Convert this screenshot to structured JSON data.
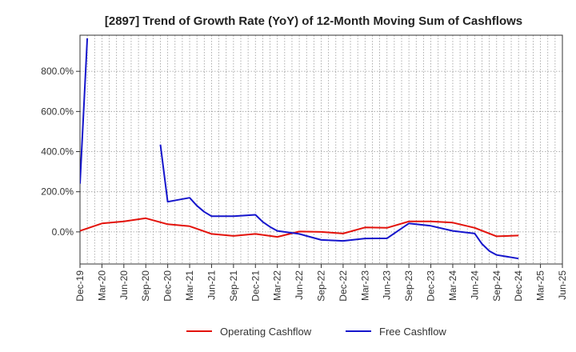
{
  "chart_data": {
    "type": "line",
    "title": "[2897]  Trend of Growth Rate (YoY) of 12-Month Moving Sum of Cashflows",
    "xlabel": "",
    "ylabel": "",
    "x_tick_labels": [
      "Dec-19",
      "Mar-20",
      "Jun-20",
      "Sep-20",
      "Dec-20",
      "Mar-21",
      "Jun-21",
      "Sep-21",
      "Dec-21",
      "Mar-22",
      "Jun-22",
      "Sep-22",
      "Dec-22",
      "Mar-23",
      "Jun-23",
      "Sep-23",
      "Dec-23",
      "Mar-24",
      "Jun-24",
      "Sep-24",
      "Dec-24",
      "Mar-25",
      "Jun-25"
    ],
    "y_ticks": [
      0,
      200,
      400,
      600,
      800
    ],
    "y_tick_labels": [
      "0.0%",
      "200.0%",
      "400.0%",
      "600.0%",
      "800.0%"
    ],
    "ylim": [
      -160,
      980
    ],
    "grid": true,
    "legend_position": "bottom-center",
    "series": [
      {
        "name": "Operating Cashflow",
        "color": "#e3120b",
        "points": [
          [
            "Dec-19",
            5
          ],
          [
            "Mar-20",
            42
          ],
          [
            "Jun-20",
            52
          ],
          [
            "Sep-20",
            68
          ],
          [
            "Dec-20",
            38
          ],
          [
            "Mar-21",
            28
          ],
          [
            "Jun-21",
            -10
          ],
          [
            "Sep-21",
            -20
          ],
          [
            "Dec-21",
            -10
          ],
          [
            "Mar-22",
            -25
          ],
          [
            "Jun-22",
            2
          ],
          [
            "Sep-22",
            0
          ],
          [
            "Dec-22",
            -8
          ],
          [
            "Mar-23",
            22
          ],
          [
            "Jun-23",
            20
          ],
          [
            "Sep-23",
            52
          ],
          [
            "Dec-23",
            52
          ],
          [
            "Mar-24",
            46
          ],
          [
            "Jun-24",
            20
          ],
          [
            "Sep-24",
            -22
          ],
          [
            "Dec-24",
            -18
          ]
        ]
      },
      {
        "name": "Free Cashflow",
        "color": "#1515cc",
        "segments": [
          [
            [
              "Dec-19",
              240
            ],
            [
              "Jan-20",
              965
            ]
          ],
          [
            [
              "Nov-20",
              435
            ],
            [
              "Dec-20",
              150
            ],
            [
              "Mar-21",
              170
            ],
            [
              "Apr-21",
              130
            ],
            [
              "May-21",
              100
            ],
            [
              "Jun-21",
              78
            ],
            [
              "Sep-21",
              78
            ],
            [
              "Dec-21",
              85
            ],
            [
              "Jan-22",
              50
            ],
            [
              "Feb-22",
              25
            ],
            [
              "Mar-22",
              5
            ],
            [
              "Jun-22",
              -10
            ],
            [
              "Sep-22",
              -40
            ],
            [
              "Dec-22",
              -45
            ],
            [
              "Mar-23",
              -33
            ],
            [
              "Jun-23",
              -32
            ],
            [
              "Sep-23",
              42
            ],
            [
              "Dec-23",
              30
            ],
            [
              "Mar-24",
              5
            ],
            [
              "Jun-24",
              -8
            ],
            [
              "Jul-24",
              -60
            ],
            [
              "Aug-24",
              -95
            ],
            [
              "Sep-24",
              -115
            ],
            [
              "Dec-24",
              -133
            ]
          ]
        ]
      }
    ]
  }
}
